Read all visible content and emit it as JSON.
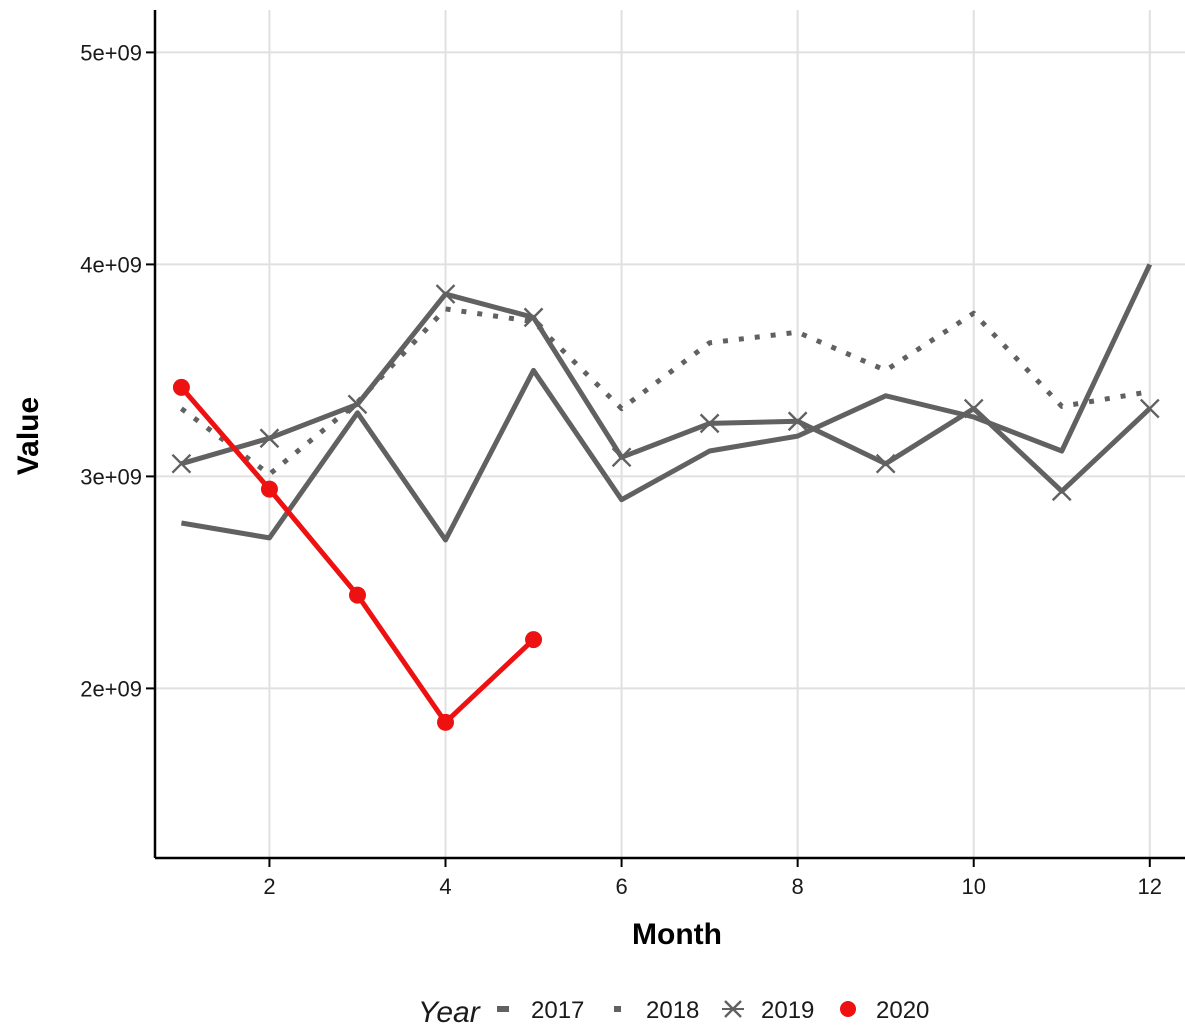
{
  "chart_data": {
    "type": "line",
    "title": "",
    "xlabel": "Month",
    "ylabel": "Value",
    "xlim": [
      0.7,
      12.4
    ],
    "ylim": [
      1200000000,
      5200000000
    ],
    "x_ticks": [
      2,
      4,
      6,
      8,
      10,
      12
    ],
    "y_ticks": [
      2000000000,
      3000000000,
      4000000000,
      5000000000
    ],
    "x_tick_labels": [
      "2",
      "4",
      "6",
      "8",
      "10",
      "12"
    ],
    "y_tick_labels": [
      "2e+09",
      "3e+09",
      "4e+09",
      "5e+09"
    ],
    "grid": true,
    "legend": {
      "title": "Year",
      "position": "bottom"
    },
    "series": [
      {
        "name": "2017",
        "color": "#616161",
        "line_style": "solid",
        "marker": "none",
        "x": [
          1,
          2,
          3,
          4,
          5,
          6,
          7,
          8,
          9,
          10,
          11,
          12
        ],
        "values": [
          2780000000,
          2710000000,
          3300000000,
          2700000000,
          3500000000,
          2890000000,
          3120000000,
          3190000000,
          3380000000,
          3280000000,
          3120000000,
          4000000000
        ]
      },
      {
        "name": "2018",
        "color": "#616161",
        "line_style": "dotted",
        "marker": "none",
        "x": [
          1,
          2,
          3,
          4,
          5,
          6,
          7,
          8,
          9,
          10,
          11,
          12
        ],
        "values": [
          3320000000,
          3010000000,
          3350000000,
          3790000000,
          3730000000,
          3320000000,
          3630000000,
          3680000000,
          3500000000,
          3770000000,
          3330000000,
          3400000000
        ]
      },
      {
        "name": "2019",
        "color": "#616161",
        "line_style": "solid",
        "marker": "x",
        "x": [
          1,
          2,
          3,
          4,
          5,
          6,
          7,
          8,
          9,
          10,
          11,
          12
        ],
        "values": [
          3060000000,
          3180000000,
          3340000000,
          3860000000,
          3750000000,
          3090000000,
          3250000000,
          3260000000,
          3060000000,
          3320000000,
          2930000000,
          3320000000
        ]
      },
      {
        "name": "2020",
        "color": "#ee1111",
        "line_style": "solid",
        "marker": "circle",
        "x": [
          1,
          2,
          3,
          4,
          5
        ],
        "values": [
          3420000000,
          2940000000,
          2440000000,
          1840000000,
          2230000000
        ]
      }
    ]
  }
}
